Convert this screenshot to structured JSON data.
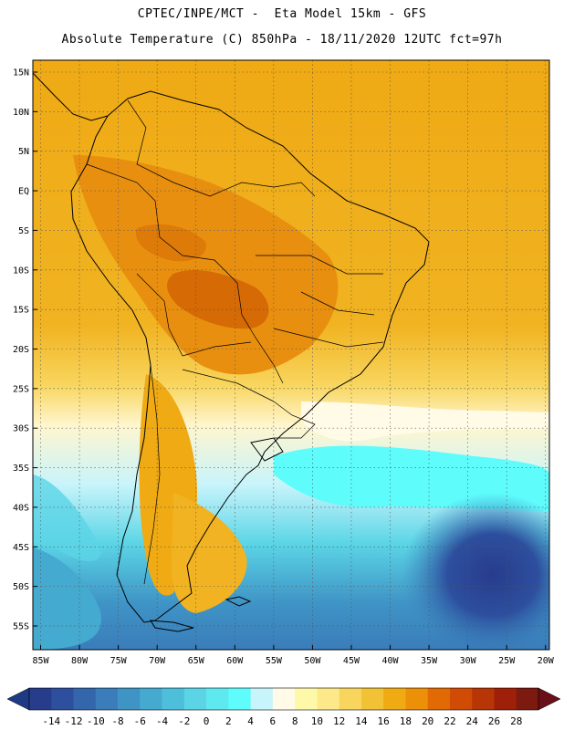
{
  "title": {
    "line1": "CPTEC/INPE/MCT -  Eta Model 15km - GFS",
    "line2": "Absolute Temperature (C) 850hPa - 18/11/2020 12UTC fct=97h"
  },
  "map": {
    "lat_labels": [
      "15N",
      "10N",
      "5N",
      "EQ",
      "5S",
      "10S",
      "15S",
      "20S",
      "25S",
      "30S",
      "35S",
      "40S",
      "45S",
      "50S",
      "55S"
    ],
    "lon_labels": [
      "85W",
      "80W",
      "75W",
      "70W",
      "65W",
      "60W",
      "55W",
      "50W",
      "45W",
      "40W",
      "35W",
      "30W",
      "25W",
      "20W"
    ],
    "lat_values": [
      15,
      10,
      5,
      0,
      -5,
      -10,
      -15,
      -20,
      -25,
      -30,
      -35,
      -40,
      -45,
      -50,
      -55
    ],
    "lon_values": [
      -85,
      -80,
      -75,
      -70,
      -65,
      -60,
      -55,
      -50,
      -45,
      -40,
      -35,
      -30,
      -25,
      -20
    ],
    "extent": {
      "lon_min": -86,
      "lon_max": -19.5,
      "lat_min": -58,
      "lat_max": 16.5
    },
    "grid": "dotted"
  },
  "colorbar": {
    "ticks": [
      "-14",
      "-12",
      "-10",
      "-8",
      "-6",
      "-4",
      "-2",
      "0",
      "2",
      "4",
      "6",
      "8",
      "10",
      "12",
      "14",
      "16",
      "18",
      "20",
      "22",
      "24",
      "26",
      "28"
    ],
    "colors": [
      "#283c8c",
      "#2d4f9e",
      "#3466ab",
      "#3a7dba",
      "#3f94c6",
      "#45aad0",
      "#4dbfdb",
      "#5bd5e6",
      "#5ee9ef",
      "#5ffcfc",
      "#c8f4fb",
      "#fffbe6",
      "#fef9a8",
      "#fde98a",
      "#f8d55d",
      "#f1c235",
      "#efaa14",
      "#ec9009",
      "#e26a05",
      "#d04c05",
      "#b83507",
      "#9e2008",
      "#7c1a10"
    ],
    "min_color": "#1f3a85",
    "max_color": "#6a0f18"
  }
}
